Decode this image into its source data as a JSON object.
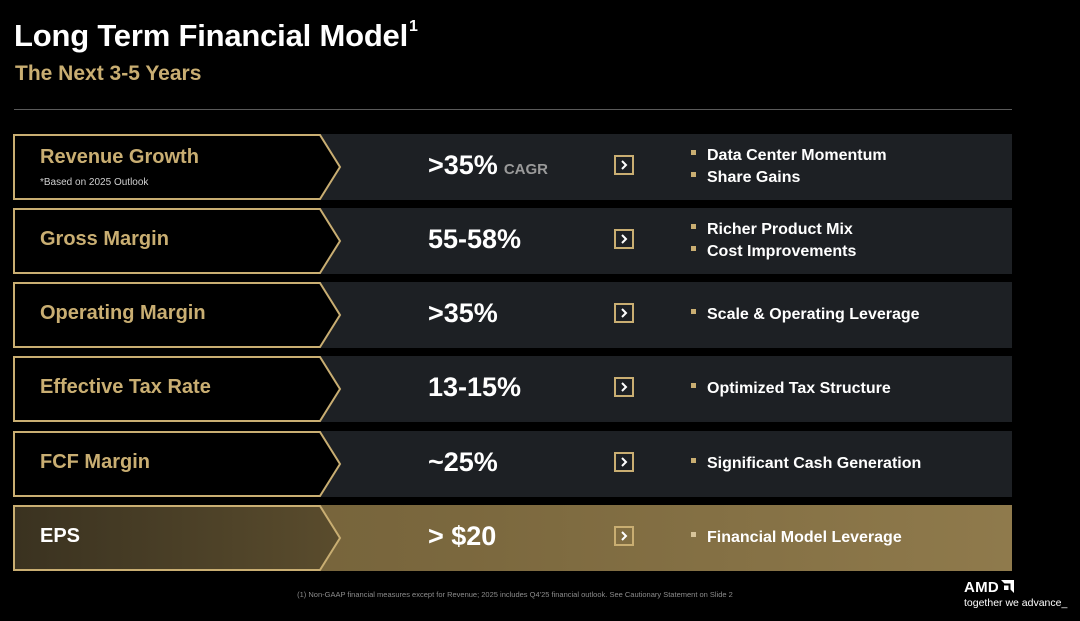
{
  "header": {
    "title": "Long Term Financial Model",
    "title_footnote": "1",
    "subtitle": "The Next 3-5 Years"
  },
  "rows": [
    {
      "label": "Revenue Growth",
      "note": "*Based on 2025 Outlook",
      "value": ">35%",
      "unit": "CAGR",
      "points": [
        "Data Center Momentum",
        "Share Gains"
      ]
    },
    {
      "label": "Gross Margin",
      "note": "",
      "value": "55-58%",
      "unit": "",
      "points": [
        "Richer Product Mix",
        "Cost Improvements"
      ]
    },
    {
      "label": "Operating Margin",
      "note": "",
      "value": ">35%",
      "unit": "",
      "points": [
        "Scale & Operating Leverage"
      ]
    },
    {
      "label": "Effective Tax Rate",
      "note": "",
      "value": "13-15%",
      "unit": "",
      "points": [
        "Optimized Tax Structure"
      ]
    },
    {
      "label": "FCF Margin",
      "note": "",
      "value": "~25%",
      "unit": "",
      "points": [
        "Significant Cash Generation"
      ]
    },
    {
      "label": "EPS",
      "note": "",
      "value": "> $20",
      "unit": "",
      "points": [
        "Financial Model Leverage"
      ]
    }
  ],
  "footnote": "(1) Non-GAAP financial measures except for Revenue; 2025 includes Q4'25 financial outlook. See Cautionary Statement on Slide 2",
  "brand": {
    "name": "AMD",
    "tagline": "together we advance_"
  },
  "colors": {
    "accent_gold": "#c9ae72",
    "row_background": "#1d2024",
    "highlight_row": "#7b683e"
  }
}
